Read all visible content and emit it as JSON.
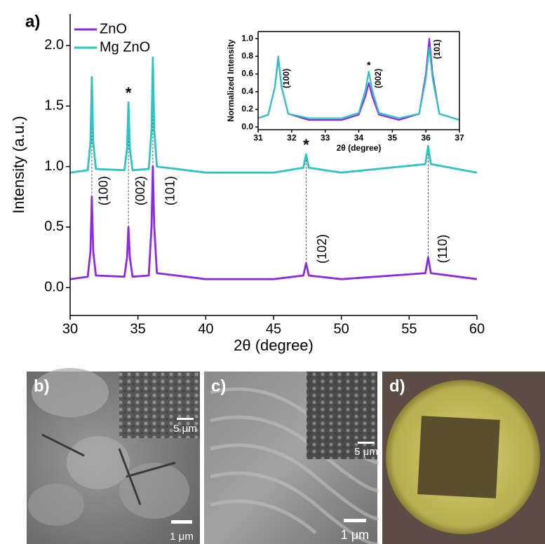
{
  "chart_data": [
    {
      "type": "line",
      "panel_label": "a)",
      "x_label": "2θ (degree)",
      "y_label": "Intensity (a.u.)",
      "x": [
        30,
        31.3,
        31.5,
        31.6,
        31.7,
        31.9,
        34.0,
        34.2,
        34.3,
        34.4,
        34.6,
        35.8,
        36.0,
        36.1,
        36.2,
        36.4,
        40,
        45,
        47.2,
        47.4,
        47.6,
        50,
        56.2,
        56.4,
        56.6,
        60
      ],
      "series": [
        {
          "name": "ZnO",
          "color": "#8a2be2",
          "values": [
            0.07,
            0.09,
            0.3,
            0.75,
            0.3,
            0.1,
            0.09,
            0.25,
            0.5,
            0.25,
            0.09,
            0.1,
            0.5,
            1.0,
            0.5,
            0.12,
            0.07,
            0.07,
            0.1,
            0.2,
            0.1,
            0.07,
            0.12,
            0.25,
            0.12,
            0.07
          ]
        },
        {
          "name": "Mg ZnO",
          "color": "#2ec4c0",
          "values": [
            0.95,
            0.97,
            1.2,
            1.74,
            1.2,
            0.98,
            0.97,
            1.15,
            1.53,
            1.15,
            0.97,
            0.98,
            1.3,
            1.9,
            1.3,
            1.0,
            0.95,
            0.95,
            0.99,
            1.1,
            0.99,
            0.95,
            1.02,
            1.17,
            1.02,
            0.95
          ]
        }
      ],
      "xlim": [
        30,
        60
      ],
      "xticks": [
        30,
        35,
        40,
        45,
        50,
        55,
        60
      ],
      "ylim": [
        -0.23,
        2.26
      ],
      "yticks": [
        {
          "value": 0,
          "label": "0.0"
        },
        0.5,
        {
          "value": 1,
          "label": "1.0"
        },
        1.5,
        {
          "value": 2,
          "label": "2.0"
        }
      ],
      "annotations": [
        "(100)",
        "(002)",
        "(101)",
        "(102)",
        "(110)",
        "*",
        "*"
      ],
      "legend": "upper left"
    },
    {
      "type": "line",
      "x_label": "2θ (degree)",
      "y_label": "Normalized Intensity",
      "x": [
        31,
        31.3,
        31.5,
        31.6,
        31.7,
        31.9,
        32.5,
        33.5,
        34.0,
        34.2,
        34.3,
        34.4,
        34.6,
        35.2,
        35.8,
        36.0,
        36.1,
        36.2,
        36.4,
        37
      ],
      "series": [
        {
          "name": "ZnO",
          "color": "#8a2be2",
          "values": [
            0.1,
            0.14,
            0.45,
            0.78,
            0.45,
            0.15,
            0.08,
            0.08,
            0.14,
            0.35,
            0.5,
            0.35,
            0.14,
            0.08,
            0.15,
            0.6,
            1.0,
            0.6,
            0.15,
            0.08
          ]
        },
        {
          "name": "Mg ZnO",
          "color": "#2ec4c0",
          "values": [
            0.1,
            0.14,
            0.45,
            0.8,
            0.45,
            0.15,
            0.1,
            0.1,
            0.16,
            0.42,
            0.63,
            0.42,
            0.16,
            0.1,
            0.15,
            0.55,
            0.9,
            0.55,
            0.15,
            0.08
          ]
        }
      ],
      "xlim": [
        31,
        37
      ],
      "xticks": [
        31,
        32,
        33,
        34,
        35,
        36,
        37
      ],
      "ylim": [
        -0.03,
        1.08
      ],
      "yticks": [
        {
          "value": 0,
          "label": "0.0"
        },
        0.2,
        0.4,
        0.6,
        0.8,
        {
          "value": 1,
          "label": "1.0"
        }
      ],
      "annotations": [
        "(100)",
        "*",
        "(002)",
        "(101)"
      ]
    }
  ],
  "panels": [
    {
      "label": "b)",
      "inset_scale": "5 μm",
      "scale": "1 μm"
    },
    {
      "label": "c)",
      "inset_scale": "5 μm",
      "scale": "1 μm"
    },
    {
      "label": "d)"
    }
  ]
}
